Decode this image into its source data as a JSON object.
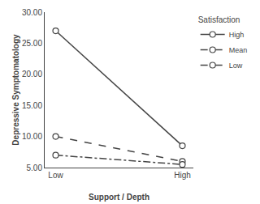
{
  "chart_data": {
    "type": "line",
    "xlabel": "Support / Depth",
    "ylabel": "Depressive Symptomatology",
    "categories": [
      "Low",
      "High"
    ],
    "series": [
      {
        "name": "High",
        "color": "#444444",
        "line_style": "solid",
        "marker": "circle",
        "values": [
          27.0,
          8.5
        ]
      },
      {
        "name": "Mean",
        "color": "#444444",
        "line_style": "dash",
        "marker": "circle",
        "values": [
          10.0,
          6.0
        ]
      },
      {
        "name": "Low",
        "color": "#444444",
        "line_style": "dashdot",
        "marker": "circle",
        "values": [
          7.0,
          5.5
        ]
      }
    ],
    "ylim": [
      5.0,
      30.0
    ],
    "yticks": [
      {
        "value": 5.0,
        "label": "5.00"
      },
      {
        "value": 10.0,
        "label": "10.00"
      },
      {
        "value": 15.0,
        "label": "15.00"
      },
      {
        "value": 20.0,
        "label": "20.00"
      },
      {
        "value": 25.0,
        "label": "25.00"
      },
      {
        "value": 30.0,
        "label": "30.00"
      }
    ],
    "legend_title": "Satisfaction",
    "legend": "right",
    "grid": false
  }
}
